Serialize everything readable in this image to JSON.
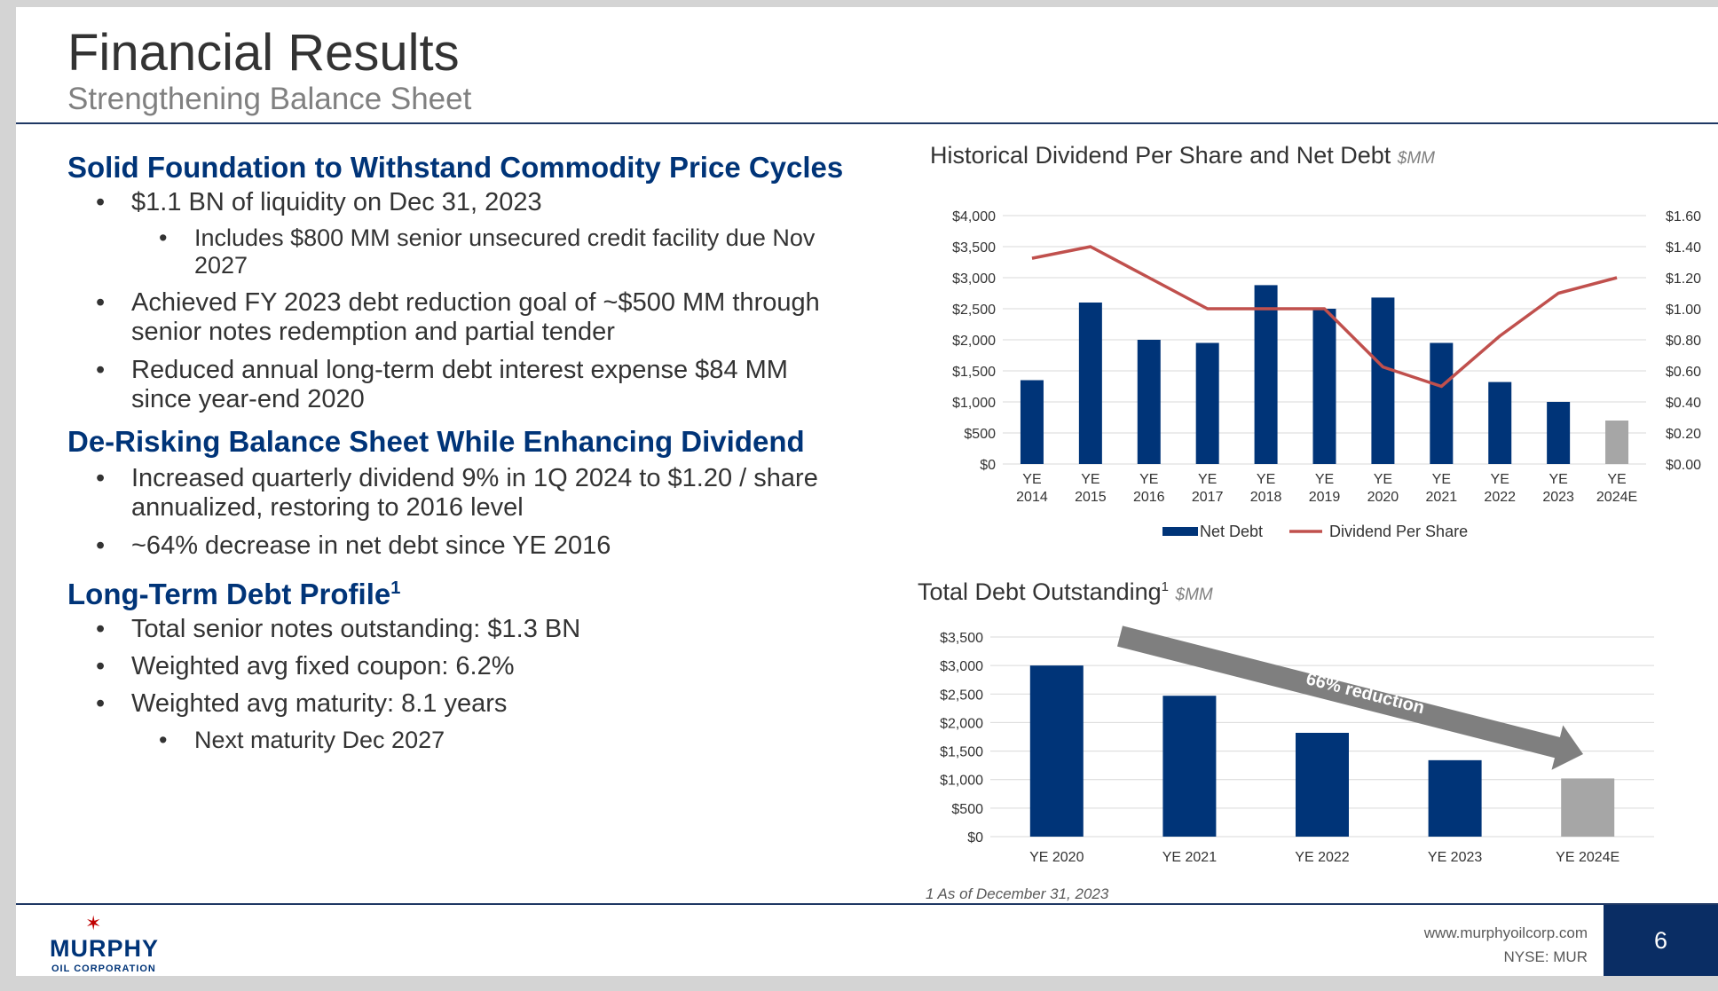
{
  "header": {
    "title": "Financial Results",
    "subtitle": "Strengthening Balance Sheet"
  },
  "sections": [
    {
      "heading": "Solid Foundation to Withstand Commodity Price Cycles",
      "bullets": [
        {
          "level": 1,
          "text": "$1.1 BN of liquidity on Dec 31, 2023"
        },
        {
          "level": 2,
          "text": "Includes $800 MM senior unsecured credit facility due Nov 2027"
        },
        {
          "level": 1,
          "text": "Achieved FY 2023 debt reduction goal of ~$500 MM through senior notes redemption and partial tender"
        },
        {
          "level": 1,
          "text": "Reduced annual long-term debt interest expense $84 MM since year-end 2020"
        }
      ]
    },
    {
      "heading": "De-Risking Balance Sheet While Enhancing Dividend",
      "bullets": [
        {
          "level": 1,
          "text": "Increased quarterly dividend 9% in 1Q 2024 to $1.20 / share annualized, restoring to 2016 level"
        },
        {
          "level": 1,
          "text": "~64% decrease in net debt since YE 2016"
        }
      ]
    },
    {
      "heading": "Long-Term Debt Profile",
      "heading_sup": "1",
      "bullets": [
        {
          "level": 1,
          "text": "Total senior notes outstanding: $1.3 BN"
        },
        {
          "level": 1,
          "text": "Weighted avg fixed coupon: 6.2%"
        },
        {
          "level": 1,
          "text": "Weighted avg maturity: 8.1 years"
        },
        {
          "level": 2,
          "text": "Next maturity Dec 2027"
        }
      ]
    }
  ],
  "chart_data": [
    {
      "type": "bar+line",
      "title": "Historical Dividend Per Share and Net Debt",
      "unit_label": "$MM",
      "categories": [
        "YE 2014",
        "YE 2015",
        "YE 2016",
        "YE 2017",
        "YE 2018",
        "YE 2019",
        "YE 2020",
        "YE 2021",
        "YE 2022",
        "YE 2023",
        "YE 2024E"
      ],
      "series": [
        {
          "name": "Net Debt",
          "kind": "bar",
          "axis": "left",
          "color": "#003478",
          "estimate_color": "#a6a6a6",
          "values": [
            1350,
            2600,
            2000,
            1950,
            2880,
            2500,
            2680,
            1950,
            1320,
            1000,
            700
          ]
        },
        {
          "name": "Dividend Per Share",
          "kind": "line",
          "axis": "right",
          "color": "#c0504d",
          "values": [
            1.325,
            1.4,
            1.2,
            1.0,
            1.0,
            1.0,
            0.625,
            0.5,
            0.825,
            1.1,
            1.2
          ]
        }
      ],
      "y_left": {
        "min": 0,
        "max": 4000,
        "ticks": [
          "$0",
          "$500",
          "$1,000",
          "$1,500",
          "$2,000",
          "$2,500",
          "$3,000",
          "$3,500",
          "$4,000"
        ]
      },
      "y_right": {
        "min": 0,
        "max": 1.6,
        "ticks": [
          "$0.00",
          "$0.20",
          "$0.40",
          "$0.60",
          "$0.80",
          "$1.00",
          "$1.20",
          "$1.40",
          "$1.60"
        ]
      },
      "legend": [
        "Net Debt",
        "Dividend Per Share"
      ],
      "legend_position": "bottom",
      "grid": true
    },
    {
      "type": "bar",
      "title": "Total Debt Outstanding",
      "title_sup": "1",
      "unit_label": "$MM",
      "categories": [
        "YE 2020",
        "YE 2021",
        "YE 2022",
        "YE 2023",
        "YE 2024E"
      ],
      "values": [
        3000,
        2470,
        1820,
        1340,
        1020
      ],
      "colors": [
        "#003478",
        "#003478",
        "#003478",
        "#003478",
        "#a6a6a6"
      ],
      "y_left": {
        "min": 0,
        "max": 3500,
        "ticks": [
          "$0",
          "$500",
          "$1,000",
          "$1,500",
          "$2,000",
          "$2,500",
          "$3,000",
          "$3,500"
        ]
      },
      "annotation": "66% reduction",
      "grid": true
    }
  ],
  "footnote": "1 As of December 31, 2023",
  "footer": {
    "logo_name": "MURPHY",
    "logo_sub": "OIL CORPORATION",
    "website": "www.murphyoilcorp.com",
    "ticker": "NYSE: MUR",
    "page_number": "6"
  }
}
